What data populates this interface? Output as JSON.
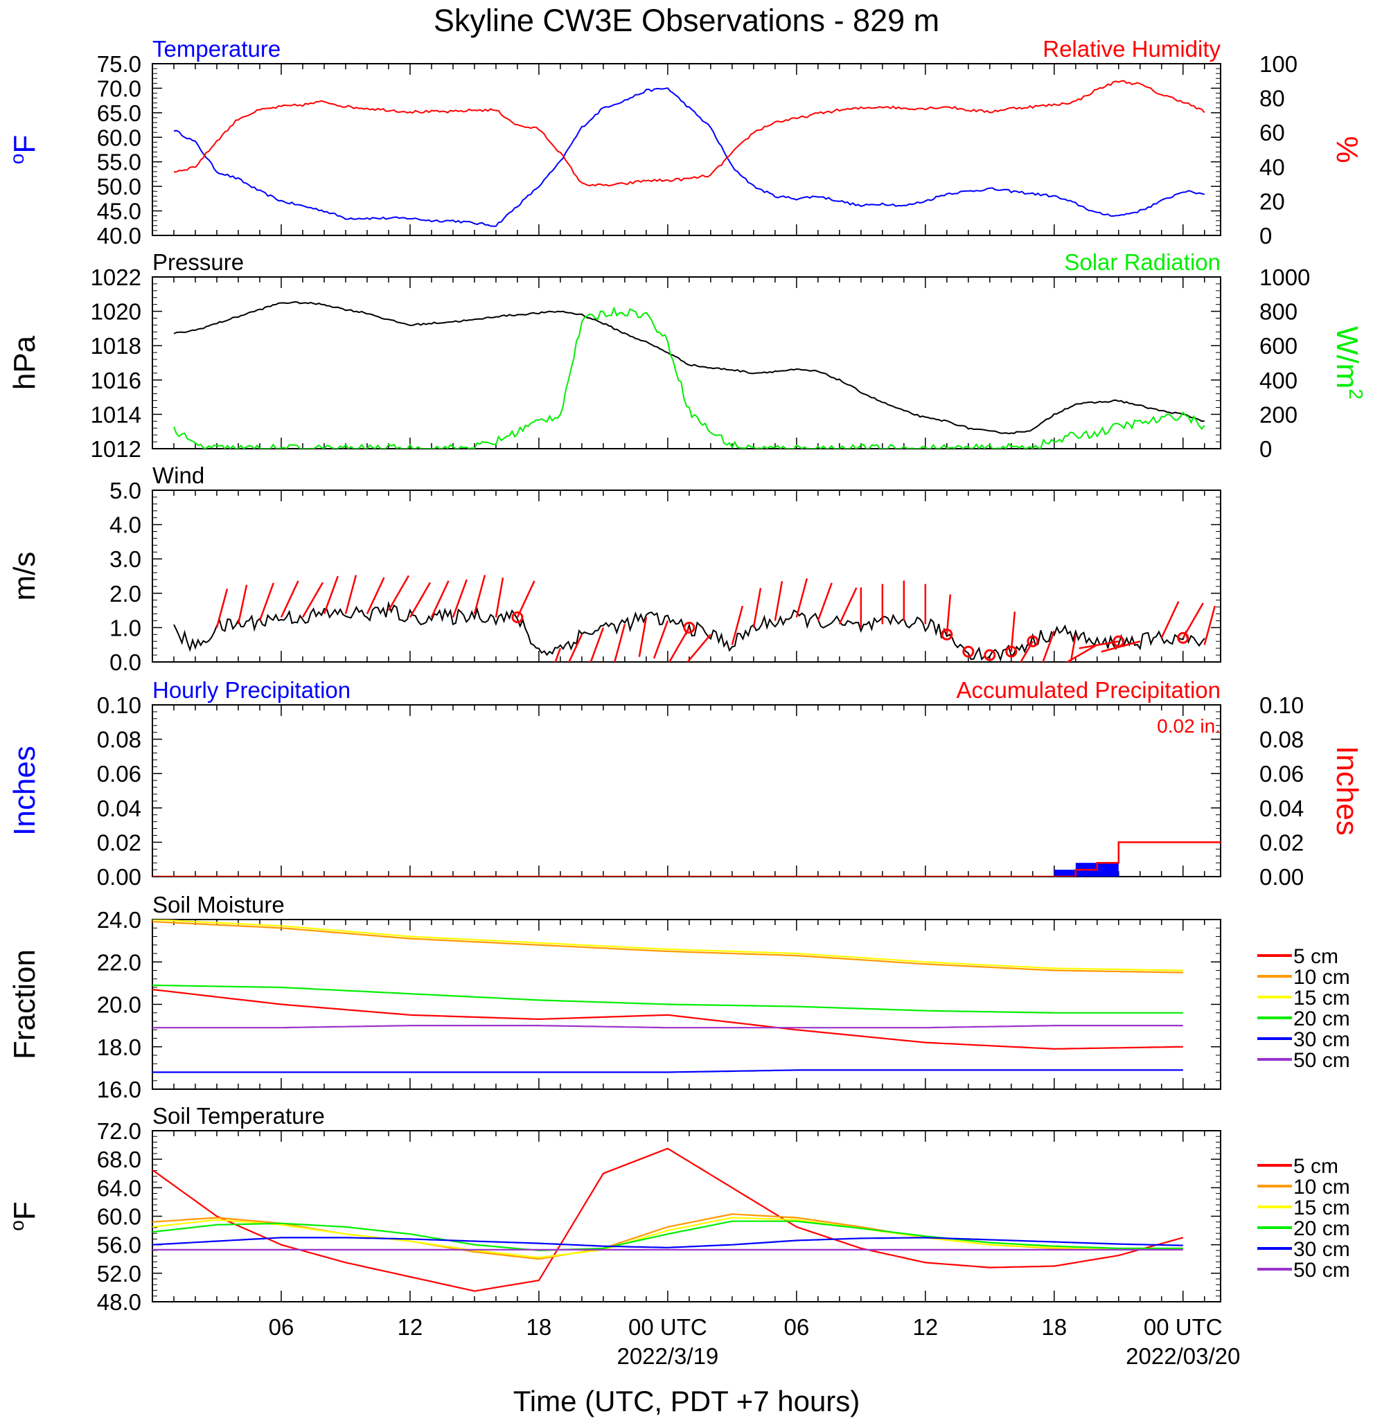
{
  "figure": {
    "title": "Skyline CW3E Observations - 829 m",
    "xlabel": "Time (UTC, PDT +7 hours)",
    "x_tick_labels": [
      "06",
      "12",
      "18",
      "00 UTC",
      "06",
      "12",
      "18",
      "00 UTC"
    ],
    "x_date_labels": [
      "2022/3/19",
      "2022/03/20"
    ]
  },
  "chart_data": [
    {
      "type": "line",
      "panel": "temperature-humidity",
      "left_title": "Temperature",
      "right_title": "Relative Humidity",
      "left_unit_base": "o",
      "left_unit": "F",
      "right_unit": "%",
      "left_ticks": [
        "75.0",
        "70.0",
        "65.0",
        "60.0",
        "55.0",
        "50.0",
        "45.0",
        "40.0"
      ],
      "right_ticks": [
        "100",
        "80",
        "60",
        "40",
        "20",
        "0"
      ],
      "ylim": [
        40,
        75
      ],
      "y2lim": [
        0,
        100
      ],
      "x_hours": [
        1,
        2,
        3,
        4,
        5,
        6,
        7,
        8,
        9,
        10,
        11,
        12,
        13,
        14,
        15,
        16,
        17,
        18,
        19,
        20,
        21,
        22,
        23,
        24,
        25,
        26,
        27,
        28,
        29,
        30,
        31,
        32,
        33,
        34,
        35,
        36,
        37,
        38,
        39,
        40,
        41,
        42,
        43,
        44,
        45,
        46,
        47,
        48,
        49
      ],
      "series": [
        {
          "name": "Temperature",
          "color": "#0000ff",
          "axis": "left",
          "values": [
            61.5,
            59.0,
            53.0,
            51.5,
            49.0,
            47.0,
            46.0,
            45.0,
            43.5,
            43.5,
            43.5,
            43.5,
            43.0,
            43.0,
            42.5,
            42.0,
            46.0,
            50.0,
            55.0,
            62.0,
            66.0,
            67.5,
            69.5,
            70.0,
            66.0,
            62.0,
            54.0,
            50.0,
            48.0,
            47.5,
            48.0,
            47.0,
            46.0,
            46.5,
            46.0,
            47.0,
            48.5,
            49.0,
            49.5,
            49.0,
            48.5,
            48.0,
            46.5,
            44.5,
            44.0,
            45.0,
            47.0,
            49.0,
            48.5
          ]
        },
        {
          "name": "Relative Humidity",
          "color": "#ff0000",
          "axis": "right",
          "values": [
            37,
            40,
            55,
            68,
            73,
            75,
            76,
            78,
            75,
            74,
            73,
            72,
            72,
            72,
            73,
            73,
            64,
            62,
            48,
            30,
            29,
            30,
            32,
            32,
            33,
            35,
            48,
            60,
            66,
            68,
            71,
            73,
            74,
            75,
            74,
            74,
            75,
            73,
            72,
            74,
            75,
            76,
            78,
            85,
            90,
            88,
            82,
            78,
            72
          ]
        }
      ]
    },
    {
      "type": "line",
      "panel": "pressure-solar",
      "left_title": "Pressure",
      "right_title": "Solar Radiation",
      "left_unit": "hPa",
      "right_unit_base": "W/m",
      "right_unit_sup": "2",
      "left_ticks": [
        "1022",
        "1020",
        "1018",
        "1016",
        "1014",
        "1012"
      ],
      "right_ticks": [
        "1000",
        "800",
        "600",
        "400",
        "200",
        "0"
      ],
      "ylim": [
        1012,
        1022
      ],
      "y2lim": [
        0,
        1000
      ],
      "x_hours": [
        1,
        2,
        3,
        4,
        5,
        6,
        7,
        8,
        9,
        10,
        11,
        12,
        13,
        14,
        15,
        16,
        17,
        18,
        19,
        20,
        21,
        22,
        23,
        24,
        25,
        26,
        27,
        28,
        29,
        30,
        31,
        32,
        33,
        34,
        35,
        36,
        37,
        38,
        39,
        40,
        41,
        42,
        43,
        44,
        45,
        46,
        47,
        48,
        49
      ],
      "series": [
        {
          "name": "Pressure",
          "color": "#000000",
          "axis": "left",
          "values": [
            1018.7,
            1018.9,
            1019.3,
            1019.7,
            1020.1,
            1020.5,
            1020.5,
            1020.4,
            1020.1,
            1019.9,
            1019.5,
            1019.2,
            1019.3,
            1019.4,
            1019.5,
            1019.7,
            1019.8,
            1019.9,
            1020.0,
            1019.8,
            1019.3,
            1018.7,
            1018.2,
            1017.6,
            1016.9,
            1016.7,
            1016.6,
            1016.4,
            1016.5,
            1016.6,
            1016.5,
            1016.0,
            1015.3,
            1014.7,
            1014.2,
            1013.8,
            1013.6,
            1013.2,
            1013.0,
            1012.9,
            1013.1,
            1014.0,
            1014.6,
            1014.7,
            1014.8,
            1014.5,
            1014.2,
            1014.0,
            1013.6
          ]
        },
        {
          "name": "Solar Radiation",
          "color": "#00ee00",
          "axis": "right",
          "values": [
            110,
            20,
            0,
            0,
            0,
            0,
            0,
            0,
            0,
            0,
            0,
            0,
            0,
            0,
            10,
            40,
            100,
            160,
            200,
            740,
            790,
            800,
            780,
            620,
            220,
            100,
            20,
            0,
            0,
            0,
            0,
            0,
            0,
            0,
            0,
            0,
            0,
            0,
            0,
            5,
            15,
            40,
            80,
            90,
            130,
            150,
            170,
            200,
            130
          ]
        }
      ]
    },
    {
      "type": "line",
      "panel": "wind",
      "left_title": "Wind",
      "left_unit": "m/s",
      "left_ticks": [
        "5.0",
        "4.0",
        "3.0",
        "2.0",
        "1.0",
        "0.0"
      ],
      "ylim": [
        0,
        5
      ],
      "x_hours": [
        1,
        2,
        3,
        4,
        5,
        6,
        7,
        8,
        9,
        10,
        11,
        12,
        13,
        14,
        15,
        16,
        17,
        18,
        19,
        20,
        21,
        22,
        23,
        24,
        25,
        26,
        27,
        28,
        29,
        30,
        31,
        32,
        33,
        34,
        35,
        36,
        37,
        38,
        39,
        40,
        41,
        42,
        43,
        44,
        45,
        46,
        47,
        48,
        49
      ],
      "series": [
        {
          "name": "Wind",
          "color": "#000000",
          "axis": "left",
          "values": [
            0.9,
            0.4,
            1.0,
            1.1,
            1.2,
            1.3,
            1.3,
            1.4,
            1.4,
            1.4,
            1.5,
            1.3,
            1.3,
            1.3,
            1.4,
            1.3,
            1.3,
            0.3,
            0.4,
            0.8,
            1.0,
            1.1,
            1.3,
            1.2,
            1.0,
            0.8,
            0.5,
            1.0,
            1.2,
            1.3,
            1.2,
            1.1,
            1.0,
            1.1,
            1.2,
            1.1,
            0.8,
            0.3,
            0.2,
            0.3,
            0.6,
            0.9,
            0.8,
            0.5,
            0.6,
            0.6,
            0.7,
            0.7,
            0.5
          ]
        }
      ],
      "barbs": {
        "color": "#ff0000",
        "x_hours": [
          3,
          4,
          5,
          6,
          7,
          8,
          9,
          10,
          11,
          12,
          13,
          14,
          15,
          16,
          17,
          19,
          20,
          21,
          22,
          23,
          24,
          25,
          26,
          27,
          28,
          29,
          30,
          31,
          32,
          33,
          34,
          35,
          36,
          37,
          40,
          41,
          42,
          43,
          44,
          45,
          46,
          47,
          48,
          49
        ],
        "angles_deg": [
          15,
          12,
          20,
          25,
          30,
          20,
          15,
          25,
          30,
          30,
          25,
          20,
          15,
          10,
          25,
          200,
          205,
          200,
          195,
          190,
          200,
          210,
          220,
          15,
          10,
          10,
          15,
          20,
          25,
          0,
          0,
          0,
          0,
          5,
          5,
          210,
          200,
          190,
          240,
          260,
          255,
          25,
          30,
          15
        ]
      },
      "calm_x_hours": [
        17,
        25,
        37,
        38,
        39,
        40,
        41,
        45,
        48
      ]
    },
    {
      "type": "bar",
      "panel": "precipitation",
      "left_title": "Hourly Precipitation",
      "right_title": "Accumulated Precipitation",
      "total_label": "0.02 in.",
      "left_unit": "Inches",
      "right_unit": "Inches",
      "left_ticks": [
        "0.10",
        "0.08",
        "0.06",
        "0.04",
        "0.02",
        "0.00"
      ],
      "right_ticks": [
        "0.10",
        "0.08",
        "0.06",
        "0.04",
        "0.02",
        "0.00"
      ],
      "ylim": [
        0,
        0.1
      ],
      "y2lim": [
        0,
        0.1
      ],
      "hourly": {
        "name": "Hourly Precipitation",
        "color": "#0000ff",
        "bars": [
          {
            "x_start": 42,
            "x_end": 43,
            "value": 0.004
          },
          {
            "x_start": 43,
            "x_end": 45,
            "value": 0.008
          }
        ]
      },
      "accumulated": {
        "name": "Accumulated Precipitation",
        "color": "#ff0000",
        "x_hours": [
          0,
          42,
          43,
          44,
          45,
          50
        ],
        "values": [
          0,
          0,
          0.004,
          0.008,
          0.02,
          0.02
        ]
      }
    },
    {
      "type": "line",
      "panel": "soil-moisture",
      "left_title": "Soil Moisture",
      "left_unit": "Fraction",
      "left_ticks": [
        "24.0",
        "22.0",
        "20.0",
        "18.0",
        "16.0"
      ],
      "ylim": [
        16,
        24
      ],
      "x_hours": [
        0,
        6,
        12,
        18,
        24,
        30,
        36,
        42,
        48
      ],
      "series": [
        {
          "name": "5 cm",
          "color": "#ff0000",
          "values": [
            20.7,
            20.0,
            19.5,
            19.3,
            19.5,
            18.8,
            18.2,
            17.9,
            18.0
          ]
        },
        {
          "name": "10 cm",
          "color": "#ff9900",
          "values": [
            23.9,
            23.6,
            23.1,
            22.8,
            22.5,
            22.3,
            21.9,
            21.6,
            21.5
          ]
        },
        {
          "name": "15 cm",
          "color": "#ffff00",
          "values": [
            24.0,
            23.7,
            23.2,
            22.9,
            22.6,
            22.4,
            22.0,
            21.7,
            21.6
          ]
        },
        {
          "name": "20 cm",
          "color": "#00ee00",
          "values": [
            20.9,
            20.8,
            20.5,
            20.2,
            20.0,
            19.9,
            19.7,
            19.6,
            19.6
          ]
        },
        {
          "name": "30 cm",
          "color": "#0000ff",
          "values": [
            16.8,
            16.8,
            16.8,
            16.8,
            16.8,
            16.9,
            16.9,
            16.9,
            16.9
          ]
        },
        {
          "name": "50 cm",
          "color": "#9933cc",
          "values": [
            18.9,
            18.9,
            19.0,
            19.0,
            18.9,
            18.9,
            18.9,
            19.0,
            19.0
          ]
        }
      ]
    },
    {
      "type": "line",
      "panel": "soil-temperature",
      "left_title": "Soil Temperature",
      "left_unit_base": "o",
      "left_unit": "F",
      "left_ticks": [
        "72.0",
        "68.0",
        "64.0",
        "60.0",
        "56.0",
        "52.0",
        "48.0"
      ],
      "ylim": [
        48,
        72
      ],
      "x_hours": [
        0,
        3,
        6,
        9,
        12,
        15,
        18,
        21,
        24,
        27,
        30,
        33,
        36,
        39,
        42,
        45,
        48
      ],
      "series": [
        {
          "name": "5 cm",
          "color": "#ff0000",
          "values": [
            66.5,
            60.0,
            56.0,
            53.5,
            51.5,
            49.5,
            51.0,
            66.0,
            69.5,
            64.0,
            58.5,
            55.5,
            53.5,
            52.8,
            53.0,
            54.5,
            57.0
          ]
        },
        {
          "name": "10 cm",
          "color": "#ff9900",
          "values": [
            59.2,
            59.8,
            59.0,
            57.5,
            56.5,
            55.0,
            54.0,
            55.5,
            58.5,
            60.3,
            59.8,
            58.5,
            57.0,
            56.0,
            55.5,
            55.3,
            55.5
          ]
        },
        {
          "name": "15 cm",
          "color": "#ffff00",
          "values": [
            58.5,
            59.5,
            58.8,
            57.5,
            56.5,
            55.2,
            54.2,
            55.3,
            58.0,
            59.8,
            59.5,
            58.3,
            57.0,
            56.0,
            55.6,
            55.4,
            55.5
          ]
        },
        {
          "name": "20 cm",
          "color": "#00ee00",
          "values": [
            57.8,
            58.8,
            59.0,
            58.5,
            57.5,
            56.0,
            55.2,
            55.5,
            57.5,
            59.3,
            59.3,
            58.3,
            57.2,
            56.3,
            55.8,
            55.5,
            55.5
          ]
        },
        {
          "name": "30 cm",
          "color": "#0000ff",
          "values": [
            56.0,
            56.5,
            57.0,
            57.0,
            56.8,
            56.5,
            56.2,
            55.8,
            55.6,
            56.0,
            56.6,
            56.9,
            57.0,
            56.7,
            56.4,
            56.1,
            55.9
          ]
        },
        {
          "name": "50 cm",
          "color": "#9933cc",
          "values": [
            55.3,
            55.3,
            55.3,
            55.3,
            55.3,
            55.3,
            55.3,
            55.3,
            55.3,
            55.3,
            55.3,
            55.3,
            55.3,
            55.3,
            55.3,
            55.3,
            55.3
          ]
        }
      ]
    }
  ]
}
